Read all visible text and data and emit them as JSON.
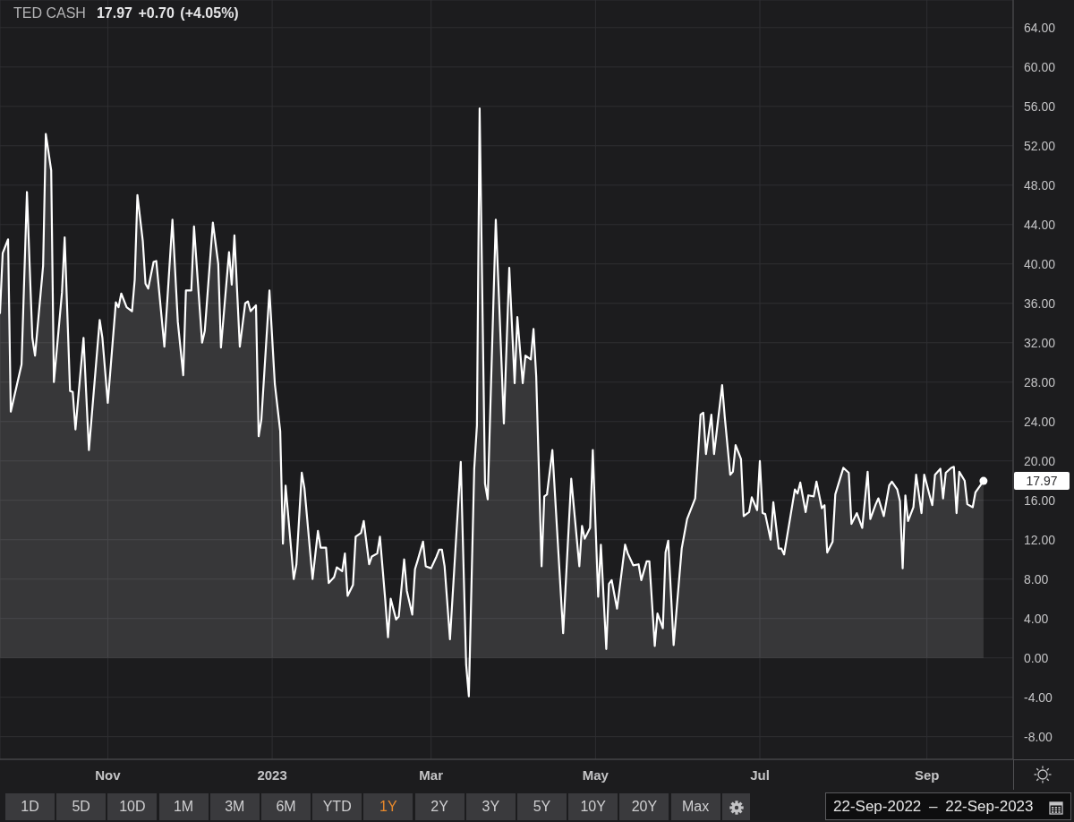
{
  "chart_data": {
    "type": "area",
    "title": "TED CASH",
    "subtitle": "17.97 +0.70 (+4.05%)",
    "x": [
      "2022-09-22",
      "2022-09-23",
      "2022-09-25",
      "2022-09-26",
      "2022-09-30",
      "2022-10-02",
      "2022-10-04",
      "2022-10-05",
      "2022-10-08",
      "2022-10-09",
      "2022-10-11",
      "2022-10-12",
      "2022-10-15",
      "2022-10-16",
      "2022-10-18",
      "2022-10-19",
      "2022-10-20",
      "2022-10-23",
      "2022-10-25",
      "2022-10-29",
      "2022-10-30",
      "2022-11-01",
      "2022-11-04",
      "2022-11-05",
      "2022-11-06",
      "2022-11-08",
      "2022-11-10",
      "2022-11-11",
      "2022-11-12",
      "2022-11-14",
      "2022-11-15",
      "2022-11-16",
      "2022-11-18",
      "2022-11-19",
      "2022-11-22",
      "2022-11-25",
      "2022-11-27",
      "2022-11-29",
      "2022-11-30",
      "2022-12-02",
      "2022-12-03",
      "2022-12-06",
      "2022-12-07",
      "2022-12-10",
      "2022-12-12",
      "2022-12-13",
      "2022-12-16",
      "2022-12-17",
      "2022-12-18",
      "2022-12-20",
      "2022-12-22",
      "2022-12-23",
      "2022-12-24",
      "2022-12-26",
      "2022-12-27",
      "2022-12-28",
      "2022-12-31",
      "2023-01-02",
      "2023-01-04",
      "2023-01-05",
      "2023-01-06",
      "2023-01-09",
      "2023-01-10",
      "2023-01-12",
      "2023-01-13",
      "2023-01-16",
      "2023-01-18",
      "2023-01-19",
      "2023-01-21",
      "2023-01-22",
      "2023-01-24",
      "2023-01-25",
      "2023-01-27",
      "2023-01-28",
      "2023-01-29",
      "2023-01-31",
      "2023-02-01",
      "2023-02-03",
      "2023-02-04",
      "2023-02-06",
      "2023-02-07",
      "2023-02-09",
      "2023-02-10",
      "2023-02-12",
      "2023-02-13",
      "2023-02-14",
      "2023-02-16",
      "2023-02-17",
      "2023-02-19",
      "2023-02-20",
      "2023-02-22",
      "2023-02-23",
      "2023-02-24",
      "2023-02-26",
      "2023-02-27",
      "2023-03-01",
      "2023-03-03",
      "2023-03-04",
      "2023-03-05",
      "2023-03-06",
      "2023-03-08",
      "2023-03-12",
      "2023-03-14",
      "2023-03-15",
      "2023-03-17",
      "2023-03-18",
      "2023-03-19",
      "2023-03-21",
      "2023-03-22",
      "2023-03-25",
      "2023-03-26",
      "2023-03-28",
      "2023-03-30",
      "2023-04-01",
      "2023-04-02",
      "2023-04-04",
      "2023-04-05",
      "2023-04-07",
      "2023-04-08",
      "2023-04-09",
      "2023-04-11",
      "2023-04-12",
      "2023-04-13",
      "2023-04-15",
      "2023-04-19",
      "2023-04-22",
      "2023-04-25",
      "2023-04-26",
      "2023-04-27",
      "2023-04-29",
      "2023-04-30",
      "2023-05-02",
      "2023-05-03",
      "2023-05-05",
      "2023-05-06",
      "2023-05-07",
      "2023-05-09",
      "2023-05-12",
      "2023-05-13",
      "2023-05-15",
      "2023-05-17",
      "2023-05-18",
      "2023-05-20",
      "2023-05-21",
      "2023-05-23",
      "2023-05-24",
      "2023-05-26",
      "2023-05-27",
      "2023-05-28",
      "2023-05-30",
      "2023-06-02",
      "2023-06-04",
      "2023-06-07",
      "2023-06-09",
      "2023-06-10",
      "2023-06-11",
      "2023-06-13",
      "2023-06-14",
      "2023-06-17",
      "2023-06-18",
      "2023-06-20",
      "2023-06-21",
      "2023-06-22",
      "2023-06-24",
      "2023-06-25",
      "2023-06-27",
      "2023-06-28",
      "2023-06-30",
      "2023-07-01",
      "2023-07-02",
      "2023-07-03",
      "2023-07-05",
      "2023-07-06",
      "2023-07-08",
      "2023-07-09",
      "2023-07-10",
      "2023-07-14",
      "2023-07-15",
      "2023-07-16",
      "2023-07-18",
      "2023-07-19",
      "2023-07-21",
      "2023-07-22",
      "2023-07-24",
      "2023-07-25",
      "2023-07-26",
      "2023-07-28",
      "2023-07-29",
      "2023-08-01",
      "2023-08-03",
      "2023-08-04",
      "2023-08-06",
      "2023-08-08",
      "2023-08-10",
      "2023-08-11",
      "2023-08-13",
      "2023-08-14",
      "2023-08-16",
      "2023-08-18",
      "2023-08-19",
      "2023-08-21",
      "2023-08-22",
      "2023-08-23",
      "2023-08-24",
      "2023-08-25",
      "2023-08-27",
      "2023-08-28",
      "2023-08-30",
      "2023-08-31",
      "2023-09-02",
      "2023-09-03",
      "2023-09-04",
      "2023-09-06",
      "2023-09-07",
      "2023-09-08",
      "2023-09-10",
      "2023-09-11",
      "2023-09-12",
      "2023-09-13",
      "2023-09-15",
      "2023-09-16",
      "2023-09-18",
      "2023-09-19",
      "2023-09-22"
    ],
    "series": [
      {
        "color": "#ffffff",
        "values": [
          35.0,
          41.1,
          42.5,
          25.0,
          29.8,
          47.3,
          32.5,
          30.7,
          39.8,
          53.2,
          49.5,
          28.0,
          37.1,
          42.7,
          27.1,
          27.0,
          23.2,
          32.5,
          21.1,
          34.3,
          32.5,
          25.9,
          36.1,
          35.6,
          37.0,
          35.6,
          35.2,
          38.4,
          47.0,
          42.3,
          38.0,
          37.5,
          40.2,
          40.3,
          31.6,
          44.5,
          34.1,
          28.7,
          37.3,
          37.3,
          43.8,
          32.0,
          33.2,
          44.2,
          40.0,
          31.5,
          41.2,
          37.9,
          42.9,
          31.6,
          36.0,
          36.2,
          35.2,
          35.8,
          22.5,
          24.2,
          37.3,
          27.8,
          23.0,
          11.6,
          17.5,
          8.0,
          9.5,
          18.8,
          17.2,
          8.0,
          12.9,
          11.2,
          11.2,
          7.6,
          8.2,
          9.2,
          8.8,
          10.6,
          6.3,
          7.4,
          12.3,
          12.7,
          13.9,
          9.5,
          10.3,
          10.6,
          12.3,
          5.8,
          2.1,
          6.0,
          3.9,
          4.2,
          10.0,
          6.8,
          4.4,
          9.0,
          9.9,
          11.8,
          9.3,
          9.1,
          10.3,
          11.0,
          11.0,
          9.3,
          1.9,
          19.9,
          -0.7,
          -3.9,
          19.2,
          23.6,
          55.8,
          17.7,
          16.1,
          44.5,
          37.8,
          23.8,
          39.6,
          27.9,
          34.6,
          27.9,
          30.7,
          30.3,
          33.4,
          28.6,
          9.3,
          16.4,
          16.6,
          21.1,
          2.5,
          18.2,
          9.3,
          13.4,
          12.1,
          13.2,
          21.1,
          6.2,
          11.5,
          0.9,
          7.5,
          7.9,
          5.0,
          11.5,
          10.6,
          9.4,
          9.5,
          7.9,
          9.8,
          9.8,
          1.2,
          4.5,
          3.0,
          10.7,
          11.9,
          1.3,
          11.1,
          14.1,
          16.2,
          24.7,
          24.9,
          20.7,
          24.7,
          20.7,
          27.7,
          24.4,
          18.6,
          18.9,
          21.6,
          20.2,
          14.4,
          14.8,
          16.3,
          15.0,
          20.0,
          14.7,
          14.6,
          12.0,
          15.8,
          11.1,
          11.1,
          10.5,
          17.1,
          16.7,
          17.8,
          14.8,
          16.5,
          16.4,
          17.9,
          15.2,
          15.5,
          10.7,
          11.8,
          16.6,
          19.3,
          18.8,
          13.6,
          14.7,
          13.2,
          18.9,
          14.1,
          15.6,
          16.2,
          14.4,
          17.5,
          17.9,
          17.1,
          15.9,
          9.1,
          16.5,
          13.9,
          15.3,
          18.6,
          14.7,
          18.6,
          16.5,
          15.5,
          18.6,
          19.2,
          16.2,
          18.8,
          19.3,
          19.4,
          14.7,
          18.9,
          18.0,
          15.6,
          15.3,
          16.8,
          17.97
        ]
      }
    ],
    "xlim": [
      "2022-09-22",
      "2023-10-03"
    ],
    "xticks": [
      {
        "value": "2022-11-01",
        "label": "Nov"
      },
      {
        "value": "2023-01-01",
        "label": "2023"
      },
      {
        "value": "2023-03-01",
        "label": "Mar"
      },
      {
        "value": "2023-05-01",
        "label": "May"
      },
      {
        "value": "2023-07-01",
        "label": "Jul"
      },
      {
        "value": "2023-09-01",
        "label": "Sep"
      }
    ],
    "ylim": [
      -10.3,
      66.8
    ],
    "yticks": [
      {
        "value": -8,
        "label": "-8.00"
      },
      {
        "value": -4,
        "label": "-4.00"
      },
      {
        "value": 0,
        "label": "0.00"
      },
      {
        "value": 4,
        "label": "4.00"
      },
      {
        "value": 8,
        "label": "8.00"
      },
      {
        "value": 12,
        "label": "12.00"
      },
      {
        "value": 16,
        "label": "16.00"
      },
      {
        "value": 20,
        "label": "20.00"
      },
      {
        "value": 24,
        "label": "24.00"
      },
      {
        "value": 28,
        "label": "28.00"
      },
      {
        "value": 32,
        "label": "32.00"
      },
      {
        "value": 36,
        "label": "36.00"
      },
      {
        "value": 40,
        "label": "40.00"
      },
      {
        "value": 44,
        "label": "44.00"
      },
      {
        "value": 48,
        "label": "48.00"
      },
      {
        "value": 52,
        "label": "52.00"
      },
      {
        "value": 56,
        "label": "56.00"
      },
      {
        "value": 60,
        "label": "60.00"
      },
      {
        "value": 64,
        "label": "64.00"
      }
    ],
    "grid": true,
    "line_style": "solid",
    "annotations": [
      "17.97",
      "1D",
      "5D",
      "10D",
      "1M",
      "3M",
      "6M",
      "YTD",
      "1Y",
      "2Y",
      "3Y",
      "5Y",
      "10Y",
      "20Y",
      "Max",
      "22-Sep-2022 – 22-Sep-2023"
    ]
  }
}
